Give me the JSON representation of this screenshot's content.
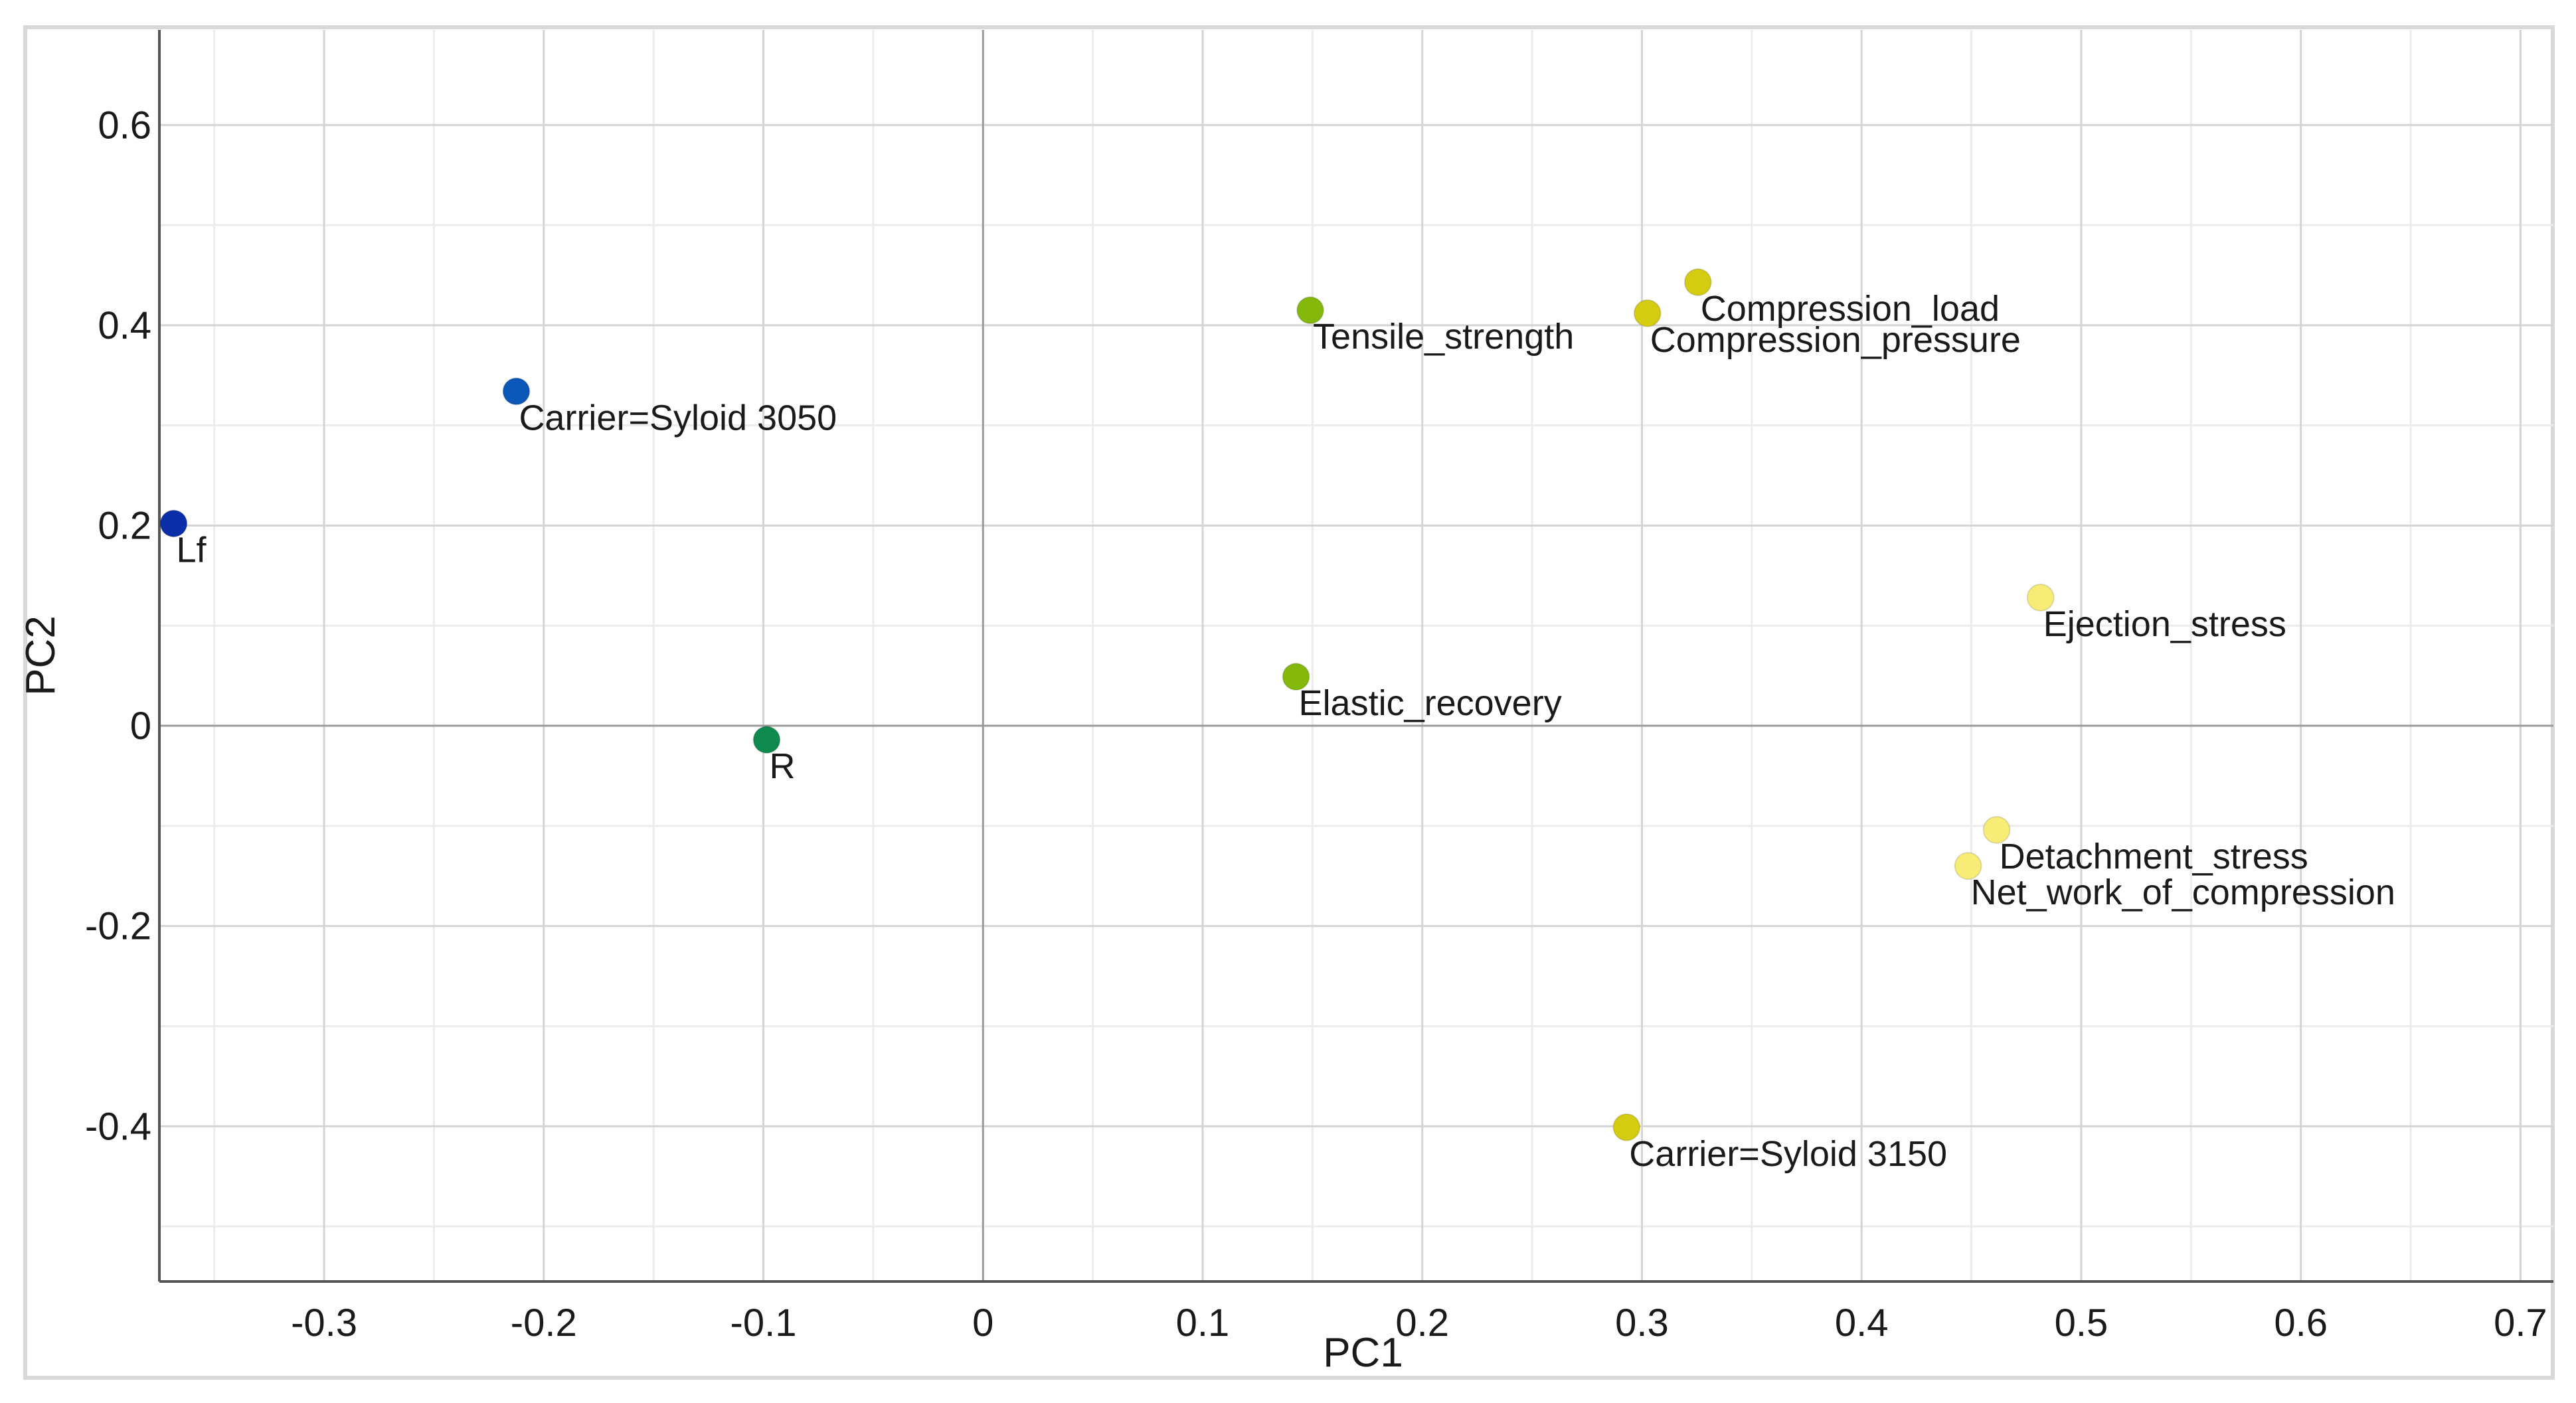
{
  "chart_data": {
    "type": "scatter",
    "title": "",
    "xlabel": "PC1",
    "ylabel": "PC2",
    "xlim": [
      -0.375,
      0.715
    ],
    "ylim": [
      -0.555,
      0.695
    ],
    "x_major_ticks": [
      -0.3,
      -0.2,
      -0.1,
      0,
      0.1,
      0.2,
      0.3,
      0.4,
      0.5,
      0.6,
      0.7
    ],
    "x_tick_labels": [
      "-0.3",
      "-0.2",
      "-0.1",
      "0",
      "0.1",
      "0.2",
      "0.3",
      "0.4",
      "0.5",
      "0.6",
      "0.7"
    ],
    "y_major_ticks": [
      -0.4,
      -0.2,
      0,
      0.2,
      0.4,
      0.6
    ],
    "y_tick_labels": [
      "-0.4",
      "-0.2",
      "0",
      "0.2",
      "0.4",
      "0.6"
    ],
    "x_minor_gridlines": [
      -0.35,
      -0.25,
      -0.15,
      -0.05,
      0.05,
      0.15,
      0.25,
      0.35,
      0.45,
      0.55,
      0.65
    ],
    "y_minor_gridlines": [
      -0.5,
      -0.3,
      -0.1,
      0.1,
      0.3,
      0.5
    ],
    "grid": true,
    "legend": "none",
    "points": [
      {
        "label": "Lf",
        "x": -0.3685,
        "y": 0.202,
        "color": "#0a2fa8",
        "label_anchor": "start"
      },
      {
        "label": "Carrier=Syloid 3050",
        "x": -0.2125,
        "y": 0.334,
        "color": "#0b58b8",
        "label_anchor": "start"
      },
      {
        "label": "R",
        "x": -0.0985,
        "y": -0.014,
        "color": "#0f8a4e",
        "label_anchor": "start"
      },
      {
        "label": "Tensile_strength",
        "x": 0.149,
        "y": 0.415,
        "color": "#84b80a",
        "label_anchor": "start"
      },
      {
        "label": "Elastic_recovery",
        "x": 0.1425,
        "y": 0.049,
        "color": "#84b80a",
        "label_anchor": "start"
      },
      {
        "label": "Compression_load",
        "x": 0.3255,
        "y": 0.443,
        "color": "#d4cc10",
        "label_anchor": "start"
      },
      {
        "label": "Compression_pressure",
        "x": 0.3025,
        "y": 0.412,
        "color": "#d4cc10",
        "label_anchor": "start"
      },
      {
        "label": "Carrier=Syloid 3150",
        "x": 0.293,
        "y": -0.401,
        "color": "#d4cc10",
        "label_anchor": "start"
      },
      {
        "label": "Ejection_stress",
        "x": 0.4815,
        "y": 0.128,
        "color": "#f6ec76",
        "label_anchor": "start"
      },
      {
        "label": "Detachment_stress",
        "x": 0.4615,
        "y": -0.104,
        "color": "#f6ec76",
        "label_anchor": "start"
      },
      {
        "label": "Net_work_of_compression",
        "x": 0.4485,
        "y": -0.14,
        "color": "#f6ec76",
        "label_anchor": "start"
      }
    ],
    "colors": {
      "major_grid": "#d4d4d4",
      "minor_grid": "#ececec",
      "zero_line": "#9a9a9a",
      "axis_line": "#555555",
      "text": "#1a1a1a"
    }
  }
}
